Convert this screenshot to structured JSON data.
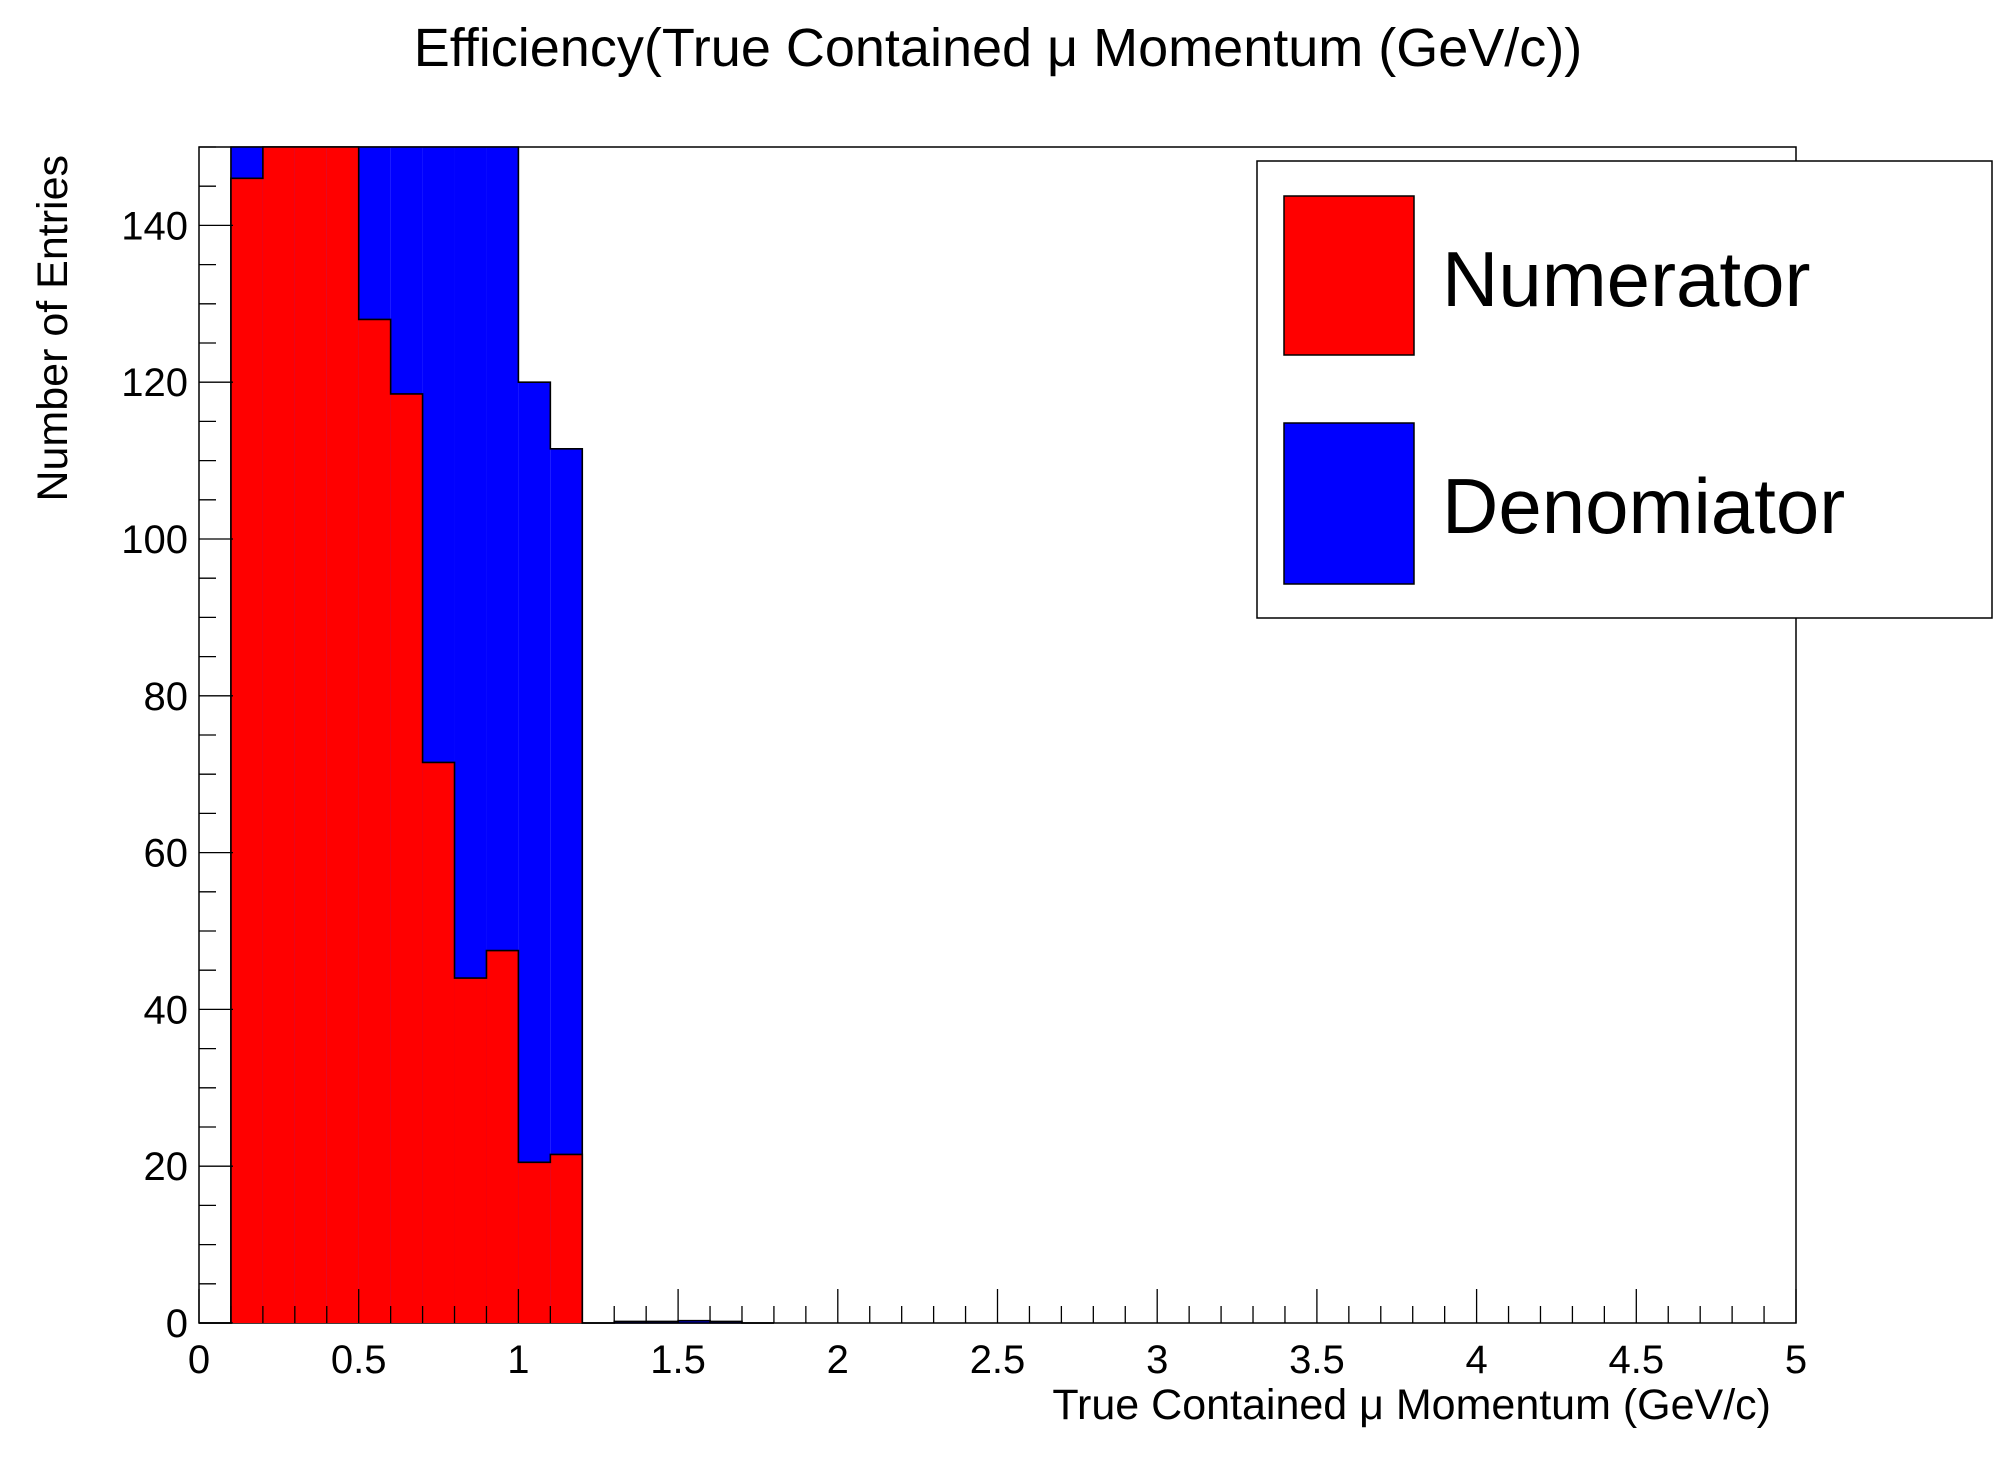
{
  "chart_data": {
    "type": "bar",
    "title": "Efficiency(True Contained  μ Momentum (GeV/c))",
    "xlabel": "True Contained  μ Momentum (GeV/c)",
    "ylabel": "Number of Entries",
    "xlim": [
      0,
      5
    ],
    "ylim": [
      0,
      150
    ],
    "bin_width": 0.1,
    "x_ticks": [
      "0",
      "0.5",
      "1",
      "1.5",
      "2",
      "2.5",
      "3",
      "3.5",
      "4",
      "4.5",
      "5"
    ],
    "y_ticks": [
      "0",
      "20",
      "40",
      "60",
      "80",
      "100",
      "120",
      "140"
    ],
    "grid": false,
    "legend": "top-right",
    "bin_edges": [
      0.0,
      0.1,
      0.2,
      0.3,
      0.4,
      0.5,
      0.6,
      0.7,
      0.8,
      0.9,
      1.0,
      1.1,
      1.2,
      1.3,
      1.4,
      1.5,
      1.6,
      1.7
    ],
    "series": [
      {
        "name": "Denomiator",
        "color": "#0000ff",
        "values": [
          0,
          150,
          150,
          150,
          150,
          150,
          150,
          150,
          150,
          150,
          120,
          111.5,
          0,
          0.2,
          0.2,
          0.3,
          0.2,
          0
        ]
      },
      {
        "name": "Numerator",
        "color": "#ff0000",
        "values": [
          0,
          146,
          150,
          150,
          150,
          128,
          118.5,
          71.5,
          44,
          47.5,
          20.5,
          21.5,
          0,
          0,
          0,
          0,
          0,
          0
        ]
      }
    ]
  }
}
